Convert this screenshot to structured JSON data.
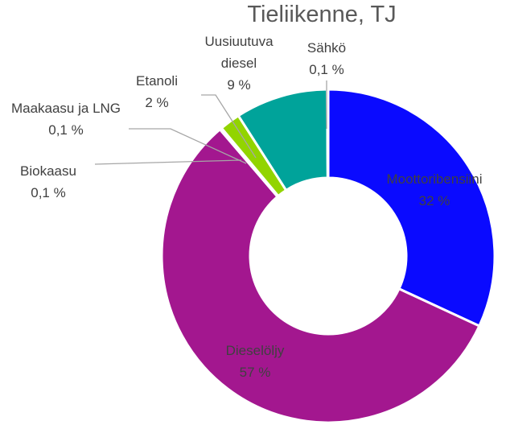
{
  "chart_data": {
    "type": "donut",
    "title": "Tieliikenne, TJ",
    "categories": [
      "Moottoribensiini",
      "Dieselöljy",
      "Biokaasu",
      "Maakaasu ja LNG",
      "Etanoli",
      "Uusiuutuva diesel",
      "Sähkö"
    ],
    "values": [
      32,
      57,
      0.1,
      0.1,
      2,
      9,
      0.1
    ],
    "value_labels": [
      "32 %",
      "57 %",
      "0,1 %",
      "0,1 %",
      "2 %",
      "9 %",
      "0,1 %"
    ],
    "colors": [
      "#0a0aff",
      "#a3178f",
      "#8c8c8c",
      "#b0b0b0",
      "#92d400",
      "#00a39a",
      "#c8c8c8"
    ]
  }
}
